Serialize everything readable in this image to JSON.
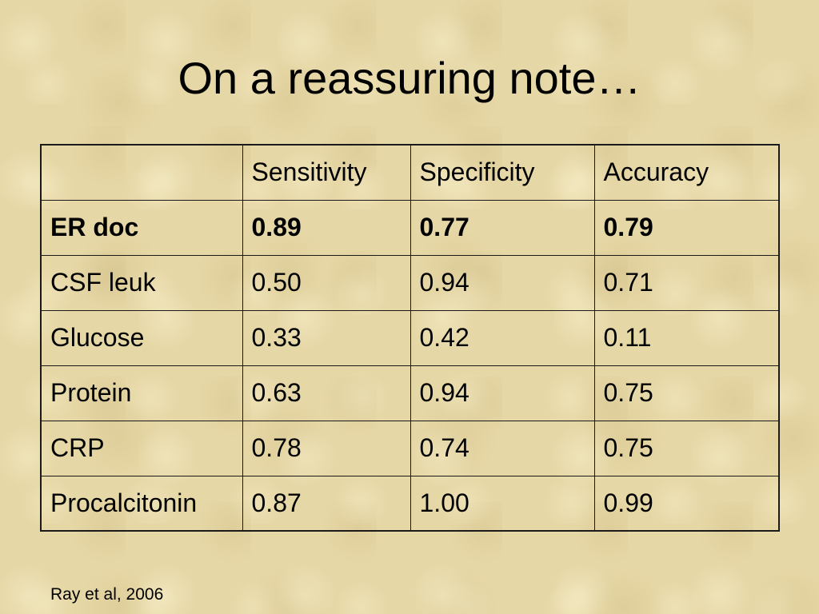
{
  "title": "On a reassuring note…",
  "table": {
    "header": [
      "Sensitivity",
      "Specificity",
      "Accuracy"
    ],
    "rows": [
      {
        "label": "ER doc",
        "values": [
          "0.89",
          "0.77",
          "0.79"
        ],
        "bold": true
      },
      {
        "label": "CSF leuk",
        "values": [
          "0.50",
          "0.94",
          "0.71"
        ]
      },
      {
        "label": "Glucose",
        "values": [
          "0.33",
          "0.42",
          "0.11"
        ]
      },
      {
        "label": "Protein",
        "values": [
          "0.63",
          "0.94",
          "0.75"
        ]
      },
      {
        "label": "CRP",
        "values": [
          "0.78",
          "0.74",
          "0.75"
        ]
      },
      {
        "label": "Procalcitonin",
        "values": [
          "0.87",
          "1.00",
          "0.99"
        ]
      }
    ]
  },
  "footnote": "Ray et al, 2006"
}
